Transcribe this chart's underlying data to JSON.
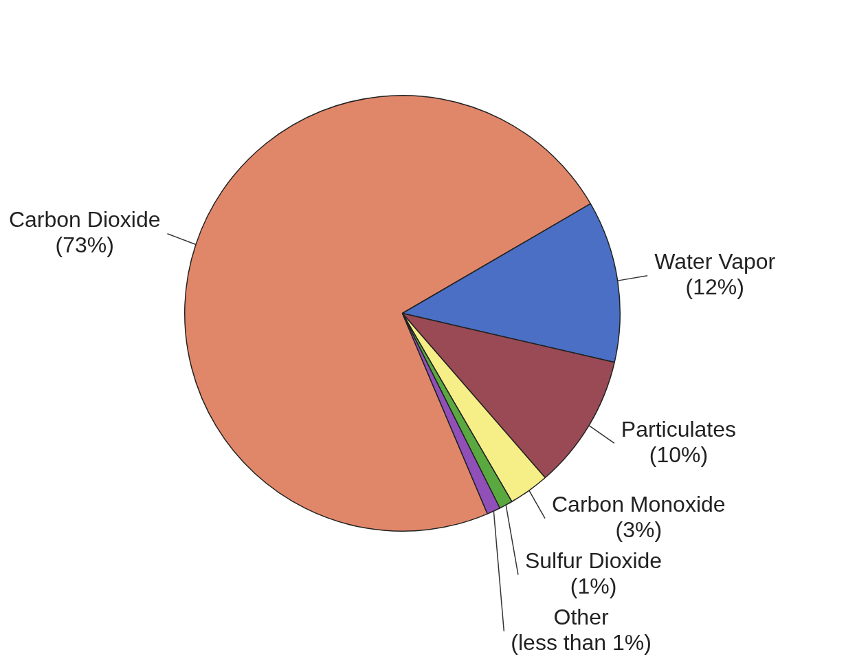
{
  "chart_data": {
    "type": "pie",
    "categories": [
      "Carbon Dioxide",
      "Water Vapor",
      "Particulates",
      "Carbon Monoxide",
      "Sulfur Dioxide",
      "Other"
    ],
    "values": [
      73,
      12,
      10,
      3,
      1,
      1
    ],
    "value_labels": [
      "(73%)",
      "(12%)",
      "(10%)",
      "(3%)",
      "(1%)",
      "(less than 1%)"
    ],
    "colors": [
      "#e0876a",
      "#4a6fc4",
      "#9a4a55",
      "#f6ee86",
      "#5aa840",
      "#9050b8"
    ],
    "legend": false
  }
}
